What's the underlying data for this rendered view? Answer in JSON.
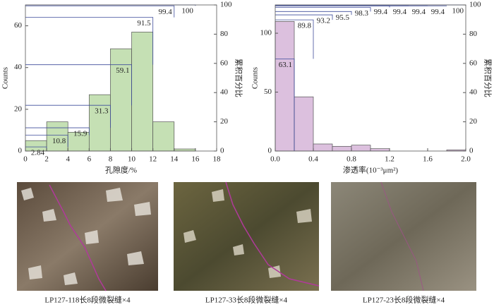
{
  "chart_data": [
    {
      "type": "histogram",
      "y_label": "Counts",
      "x_label": "孔隙度/%",
      "y2_label": "累积百分比",
      "bins": [
        0,
        2,
        4,
        6,
        8,
        10,
        12,
        14,
        16
      ],
      "values": [
        5,
        14,
        9,
        27,
        49,
        57,
        14,
        1
      ],
      "cumulative_values": [
        2.84,
        10.8,
        15.9,
        31.3,
        59.1,
        91.5,
        99.4,
        100
      ],
      "cumulative_axis": "y2",
      "color": "#c5e0b4",
      "line_color": "#3f4c9b",
      "xlim": [
        0,
        18
      ],
      "xticks": [
        0,
        2,
        4,
        6,
        8,
        10,
        12,
        14,
        16,
        18
      ],
      "ylim": [
        0,
        70
      ],
      "yticks": [
        0,
        20,
        40,
        60
      ],
      "y2lim": [
        0,
        100
      ],
      "y2ticks": [
        0,
        20,
        40,
        60,
        80,
        100
      ]
    },
    {
      "type": "histogram",
      "y_label": "Counts",
      "x_label": "渗透率(10⁻³μm²)",
      "y2_label": "累积百分比",
      "bins": [
        0,
        0.2,
        0.4,
        0.6,
        0.8,
        1.0,
        1.2,
        1.4,
        1.6,
        1.8,
        2.0
      ],
      "values": [
        110,
        46,
        6,
        4,
        5,
        2,
        0,
        0,
        0,
        1
      ],
      "cumulative_values": [
        63.1,
        89.8,
        93.2,
        95.5,
        98.3,
        99.4,
        99.4,
        99.4,
        99.4,
        100
      ],
      "cumulative_axis": "y2",
      "color": "#dcc0de",
      "line_color": "#3f4c9b",
      "xlim": [
        0,
        2
      ],
      "xticks": [
        {
          "value": 0,
          "label": "0.0"
        },
        0.4,
        0.8,
        1.2,
        1.6,
        {
          "value": 2,
          "label": "2.0"
        }
      ],
      "ylim": [
        0,
        124
      ],
      "yticks": [
        0,
        50,
        100
      ],
      "y2lim": [
        0,
        100
      ],
      "y2ticks": [
        0,
        20,
        40,
        60,
        80,
        100
      ]
    }
  ],
  "figures": [
    {
      "caption": "LP127-118长8段微裂缝×4"
    },
    {
      "caption": "LP127-33长8段微裂缝×4"
    },
    {
      "caption": "LP127-23长8段微裂缝×4"
    }
  ]
}
